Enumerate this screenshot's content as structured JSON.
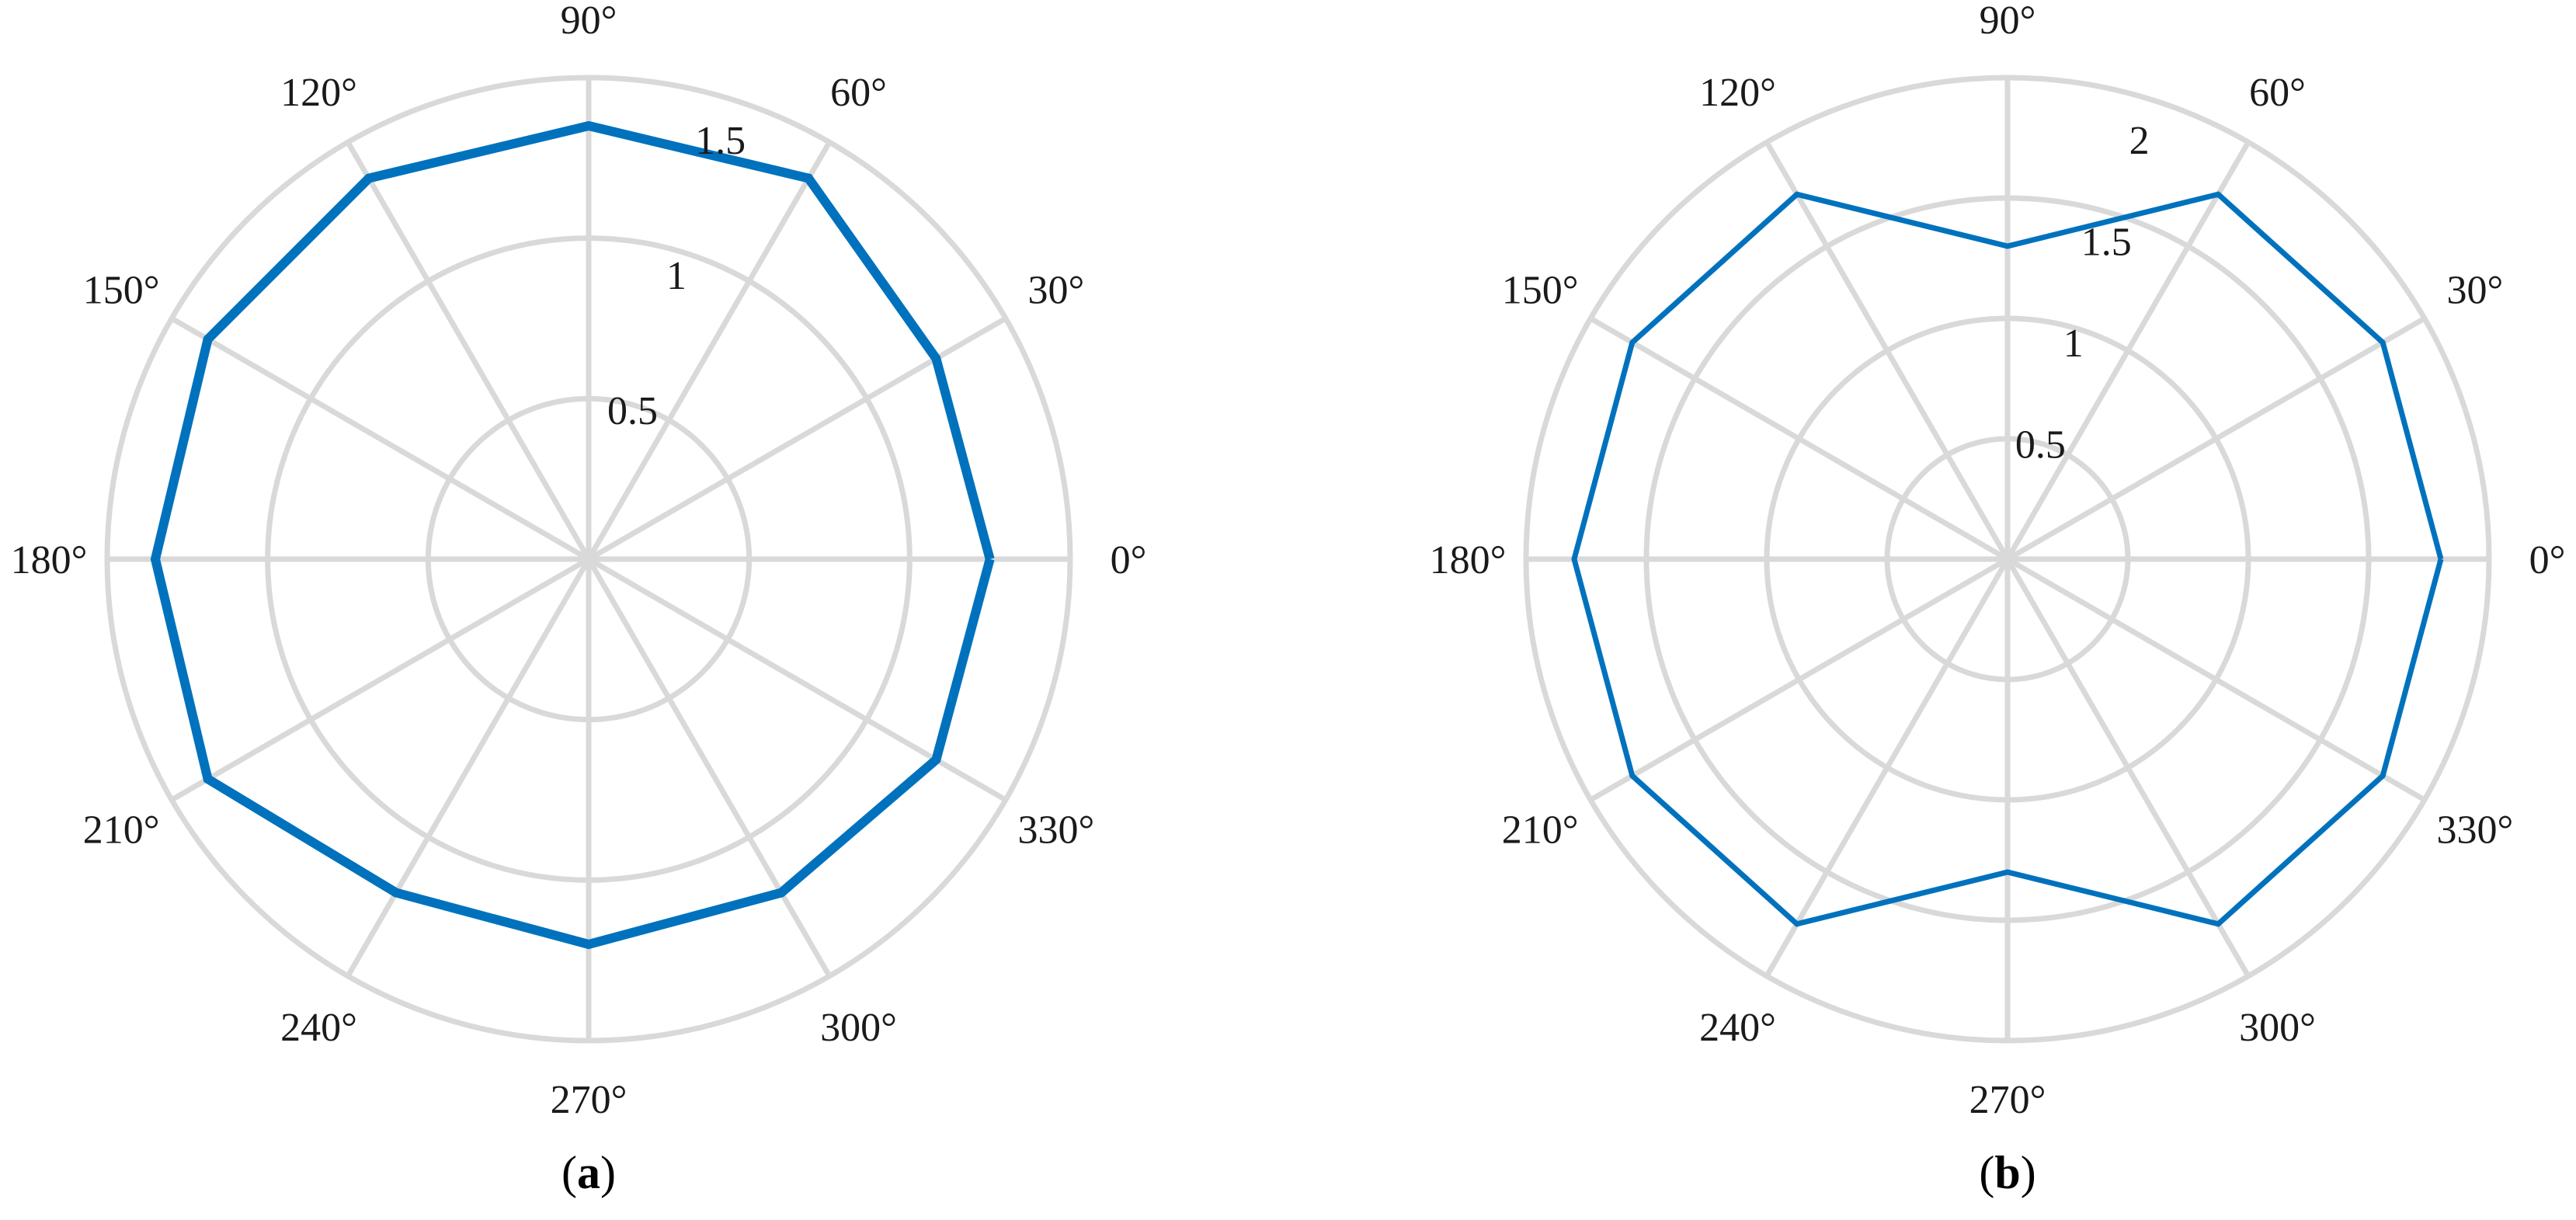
{
  "chart_data": [
    {
      "type": "polar",
      "panel_label": "a",
      "theta_tick_labels": [
        "0°",
        "30°",
        "60°",
        "90°",
        "120°",
        "150°",
        "180°",
        "210°",
        "240°",
        "270°",
        "300°",
        "330°"
      ],
      "r_tick_labels": [
        "0.5",
        "1",
        "1.5"
      ],
      "r_ticks": [
        0.5,
        1,
        1.5
      ],
      "rlim": [
        0,
        1.5
      ],
      "grid": true,
      "series": [
        {
          "theta_deg": [
            0,
            30,
            60,
            90,
            120,
            150,
            180,
            210,
            240,
            270,
            300,
            330,
            360
          ],
          "r": [
            1.25,
            1.25,
            1.37,
            1.35,
            1.37,
            1.37,
            1.35,
            1.37,
            1.2,
            1.2,
            1.2,
            1.25,
            1.25
          ],
          "color": "#0072bd"
        }
      ]
    },
    {
      "type": "polar",
      "panel_label": "b",
      "theta_tick_labels": [
        "0°",
        "30°",
        "60°",
        "90°",
        "120°",
        "150°",
        "180°",
        "210°",
        "240°",
        "270°",
        "300°",
        "330°"
      ],
      "r_tick_labels": [
        "0.5",
        "1",
        "1.5",
        "2"
      ],
      "r_ticks": [
        0.5,
        1,
        1.5,
        2
      ],
      "rlim": [
        0,
        2
      ],
      "grid": true,
      "series": [
        {
          "theta_deg": [
            0,
            30,
            60,
            90,
            120,
            150,
            180,
            210,
            240,
            270,
            300,
            330,
            360
          ],
          "r": [
            1.8,
            1.8,
            1.75,
            1.3,
            1.75,
            1.8,
            1.8,
            1.8,
            1.75,
            1.3,
            1.75,
            1.8,
            1.8
          ],
          "color": "#0072bd"
        }
      ]
    }
  ]
}
